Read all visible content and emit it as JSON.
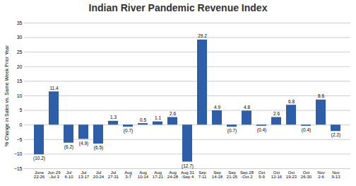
{
  "chart_data": {
    "type": "bar",
    "title": "Indian River Pandemic Revenue Index",
    "ylabel": "% Change in Sales vs. Same Week Prior Year",
    "categories": [
      "June\n22-26",
      "Jun 29\n-Jul 3",
      "Jul\n6-10",
      "Jul\n13-17",
      "Jul\n20-24",
      "Jul\n27-31",
      "Aug\n3-7",
      "Aug\n10-14",
      "Aug\n17-21",
      "Aug\n24-28",
      "Aug 31\n-Sep 4",
      "Sep\n7-11",
      "Sep\n14-18",
      "Sep\n21-25",
      "Sep 28\n-Oct 2",
      "Oct\n5-9",
      "Oct\n12-16",
      "Oct\n19-23",
      "Oct\n26-30",
      "Nov\n2-6",
      "Nov\n9-13"
    ],
    "values": [
      -10.2,
      11.4,
      -6.2,
      -4.9,
      -6.5,
      1.3,
      -0.7,
      0.5,
      1.1,
      2.6,
      -12.7,
      29.2,
      4.9,
      -0.7,
      4.8,
      -0.4,
      2.6,
      6.8,
      -0.4,
      8.6,
      -2.2
    ],
    "value_labels": [
      "(10.2)",
      "11.4",
      "(6.2)",
      "(4.9)",
      "(6.5)",
      "1.3",
      "(0.7)",
      "0.5",
      "1.1",
      "2.6",
      "(12.7)",
      "29.2",
      "4.9",
      "(0.7)",
      "4.8",
      "(0.4)",
      "2.6",
      "6.8",
      "(0.4)",
      "8.6",
      "(2.2)"
    ],
    "color": "#2E5EA8",
    "ylim": [
      -15,
      35
    ],
    "yticks": [
      -15,
      -10,
      -5,
      0,
      5,
      10,
      15,
      20,
      25,
      30,
      35
    ],
    "grid": true,
    "data_labels": true
  }
}
